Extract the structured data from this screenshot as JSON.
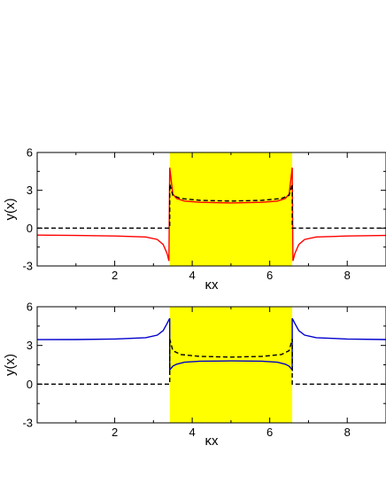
{
  "chart_data": [
    {
      "type": "line",
      "xlabel": "κx",
      "ylabel": "y(x)",
      "xlim": [
        0,
        9
      ],
      "ylim": [
        -3,
        6
      ],
      "x_ticks": [
        2,
        4,
        6,
        8
      ],
      "y_ticks": [
        -3,
        0,
        3,
        6
      ],
      "grid": false,
      "highlight_band": {
        "x": [
          3.42,
          6.58
        ],
        "color": "#ffff00"
      },
      "series": [
        {
          "style": "solid",
          "color": "#ff0000",
          "points": [
            [
              0,
              -0.55
            ],
            [
              1,
              -0.58
            ],
            [
              2,
              -0.62
            ],
            [
              2.8,
              -0.7
            ],
            [
              3.1,
              -0.9
            ],
            [
              3.25,
              -1.3
            ],
            [
              3.35,
              -2.0
            ],
            [
              3.4,
              -2.6
            ],
            [
              3.42,
              4.8
            ],
            [
              3.5,
              2.7
            ],
            [
              3.6,
              2.35
            ],
            [
              3.8,
              2.15
            ],
            [
              4.2,
              2.05
            ],
            [
              5,
              2.0
            ],
            [
              5.8,
              2.05
            ],
            [
              6.2,
              2.15
            ],
            [
              6.4,
              2.35
            ],
            [
              6.5,
              2.7
            ],
            [
              6.58,
              4.8
            ],
            [
              6.6,
              -2.6
            ],
            [
              6.65,
              -2.0
            ],
            [
              6.75,
              -1.3
            ],
            [
              6.9,
              -0.9
            ],
            [
              7.2,
              -0.7
            ],
            [
              8,
              -0.62
            ],
            [
              9,
              -0.58
            ]
          ]
        },
        {
          "style": "dashed",
          "color": "#000000",
          "points": [
            [
              0,
              0
            ],
            [
              3.42,
              0
            ],
            [
              3.42,
              3.5
            ],
            [
              3.5,
              2.6
            ],
            [
              3.7,
              2.35
            ],
            [
              4.2,
              2.2
            ],
            [
              5,
              2.15
            ],
            [
              5.8,
              2.2
            ],
            [
              6.3,
              2.35
            ],
            [
              6.5,
              2.6
            ],
            [
              6.58,
              3.5
            ],
            [
              6.58,
              0
            ],
            [
              9,
              0
            ]
          ]
        }
      ]
    },
    {
      "type": "line",
      "xlabel": "κx",
      "ylabel": "y(x)",
      "xlim": [
        0,
        9
      ],
      "ylim": [
        -3,
        6
      ],
      "x_ticks": [
        2,
        4,
        6,
        8
      ],
      "y_ticks": [
        -3,
        0,
        3,
        6
      ],
      "grid": false,
      "highlight_band": {
        "x": [
          3.42,
          6.58
        ],
        "color": "#ffff00"
      },
      "series": [
        {
          "style": "solid",
          "color": "#0000cc",
          "points": [
            [
              0,
              3.45
            ],
            [
              1,
              3.46
            ],
            [
              2,
              3.5
            ],
            [
              2.8,
              3.6
            ],
            [
              3.1,
              3.8
            ],
            [
              3.25,
              4.15
            ],
            [
              3.35,
              4.7
            ],
            [
              3.42,
              5.1
            ],
            [
              3.42,
              1.1
            ],
            [
              3.5,
              1.4
            ],
            [
              3.6,
              1.55
            ],
            [
              3.8,
              1.7
            ],
            [
              4.2,
              1.78
            ],
            [
              5,
              1.8
            ],
            [
              5.8,
              1.78
            ],
            [
              6.2,
              1.7
            ],
            [
              6.4,
              1.55
            ],
            [
              6.5,
              1.4
            ],
            [
              6.58,
              1.1
            ],
            [
              6.58,
              5.1
            ],
            [
              6.65,
              4.7
            ],
            [
              6.75,
              4.15
            ],
            [
              6.9,
              3.8
            ],
            [
              7.2,
              3.6
            ],
            [
              8,
              3.5
            ],
            [
              9,
              3.46
            ]
          ]
        },
        {
          "style": "dashed",
          "color": "#000000",
          "points": [
            [
              0,
              0
            ],
            [
              3.42,
              0
            ],
            [
              3.42,
              3.5
            ],
            [
              3.5,
              2.6
            ],
            [
              3.7,
              2.3
            ],
            [
              4.2,
              2.15
            ],
            [
              5,
              2.1
            ],
            [
              5.8,
              2.15
            ],
            [
              6.3,
              2.3
            ],
            [
              6.5,
              2.6
            ],
            [
              6.58,
              3.5
            ],
            [
              6.58,
              0
            ],
            [
              9,
              0
            ]
          ]
        }
      ]
    }
  ]
}
